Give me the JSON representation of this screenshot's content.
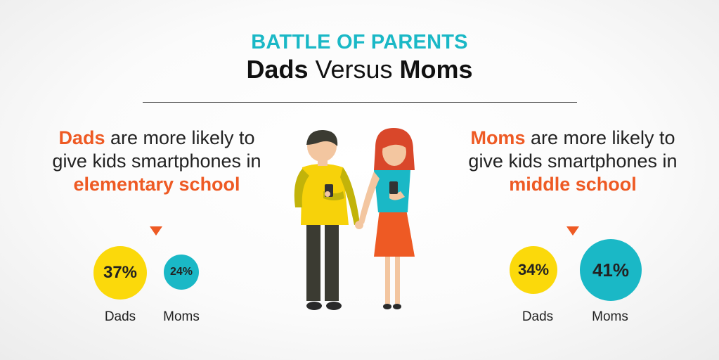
{
  "header": {
    "kicker": "BATTLE OF PARENTS",
    "title_part1": "Dads",
    "title_part2": " Versus ",
    "title_part3": "Moms"
  },
  "left_panel": {
    "accent": "Dads",
    "text": " are more likely to give kids smartphones in ",
    "highlight": "elementary school",
    "stats": [
      {
        "label": "Dads",
        "value": "37%",
        "percent": 37
      },
      {
        "label": "Moms",
        "value": "24%",
        "percent": 24
      }
    ]
  },
  "right_panel": {
    "accent": "Moms",
    "text": " are more likely to give kids smartphones in ",
    "highlight": "middle school",
    "stats": [
      {
        "label": "Dads",
        "value": "34%",
        "percent": 34
      },
      {
        "label": "Moms",
        "value": "41%",
        "percent": 41
      }
    ]
  },
  "colors": {
    "accent_orange": "#ee5a24",
    "teal": "#1ab8c6",
    "yellow": "#fbd90b"
  }
}
